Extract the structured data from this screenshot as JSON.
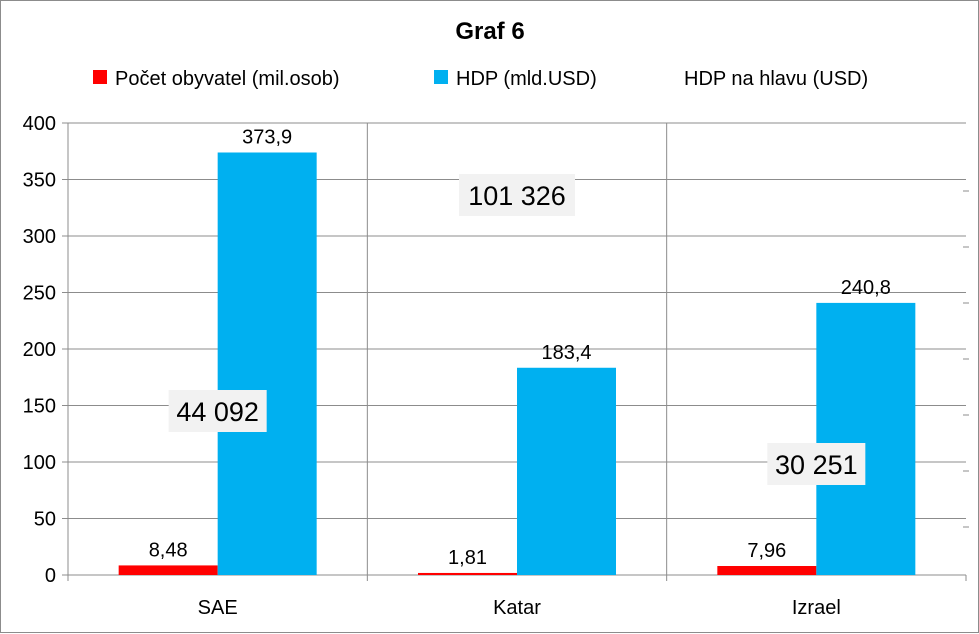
{
  "chart_data": {
    "type": "bar",
    "title": "Graf 6",
    "categories": [
      "SAE",
      "Katar",
      "Izrael"
    ],
    "series": [
      {
        "name": "Počet obyvatel (mil.osob)",
        "values": [
          8.48,
          1.81,
          7.96
        ],
        "labels": [
          "8,48",
          "1,81",
          "7,96"
        ],
        "color": "#ff0000"
      },
      {
        "name": "HDP (mld.USD)",
        "values": [
          373.9,
          183.4,
          240.8
        ],
        "labels": [
          "373,9",
          "183,4",
          "240,8"
        ],
        "color": "#00b0f0"
      }
    ],
    "per_capita": {
      "name": "HDP na hlavu (USD)",
      "labels": [
        "44 092",
        "101 326",
        "30 251"
      ]
    },
    "y_ticks": [
      "0",
      "50",
      "100",
      "150",
      "200",
      "250",
      "300",
      "350",
      "400"
    ],
    "ylim": [
      0,
      400
    ],
    "grid": true,
    "legend_position": "top"
  }
}
